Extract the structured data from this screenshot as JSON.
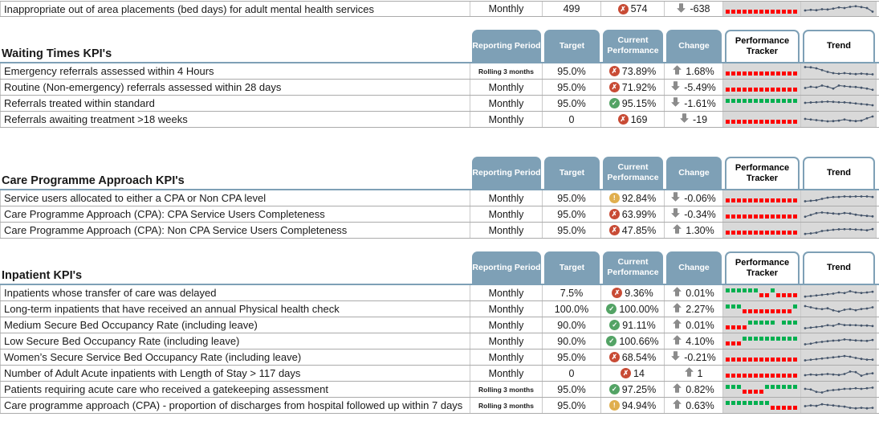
{
  "report": {
    "columns": [
      {
        "label": "Reporting Period",
        "style": "blue"
      },
      {
        "label": "Target",
        "style": "blue"
      },
      {
        "label": "Current Performance",
        "style": "blue"
      },
      {
        "label": "Change",
        "style": "blue"
      },
      {
        "label": "Performance Tracker",
        "style": "white"
      },
      {
        "label": "Trend",
        "style": "white"
      }
    ],
    "top_row": {
      "name": "Inappropriate out of area placements (bed days) for adult mental health services",
      "period": "Monthly",
      "period_small": false,
      "target": "499",
      "status": "fail",
      "current": "574",
      "change_dir": "down",
      "change": "-638",
      "tracker": "RRRRRRRRRRRRR",
      "trend": [
        4,
        4.5,
        4.2,
        5,
        4.8,
        5.5,
        6.5,
        6,
        7,
        7.5,
        6.8,
        6,
        3
      ]
    },
    "sections": [
      {
        "title": "Waiting Times KPI's",
        "rows": [
          {
            "name": "Emergency referrals assessed within 4 Hours",
            "period": "Rolling 3 months",
            "period_small": true,
            "target": "95.0%",
            "status": "fail",
            "current": "73.89%",
            "change_dir": "up",
            "change": "1.68%",
            "tracker": "RRRRRRRRRRRRR",
            "trend": [
              9,
              8.8,
              8,
              6.5,
              5,
              4,
              3.5,
              4,
              3.5,
              3.2,
              3.6,
              3.2,
              3
            ]
          },
          {
            "name": "Routine (Non-emergency) referrals assessed within 28 days",
            "period": "Monthly",
            "period_small": false,
            "target": "95.0%",
            "status": "fail",
            "current": "71.92%",
            "change_dir": "down",
            "change": "-5.49%",
            "tracker": "RRRRRRRRRRRRR",
            "trend": [
              5,
              6,
              5.5,
              7,
              6,
              4.5,
              7,
              6.5,
              6,
              5.8,
              5.2,
              4.5,
              3.5
            ]
          },
          {
            "name": "Referrals treated within standard",
            "period": "Monthly",
            "period_small": false,
            "target": "95.0%",
            "status": "pass",
            "current": "95.15%",
            "change_dir": "down",
            "change": "-1.61%",
            "tracker": "GGGGGGGGGGGGG",
            "trend": [
              6,
              6.3,
              6.5,
              6.8,
              7,
              6.8,
              6.5,
              6.4,
              6,
              5.5,
              5,
              4.6,
              4
            ]
          },
          {
            "name": "Referrals awaiting treatment >18 weeks",
            "period": "Monthly",
            "period_small": false,
            "target": "0",
            "status": "fail",
            "current": "169",
            "change_dir": "down",
            "change": "-19",
            "tracker": "RRRRRRRRRRRRR",
            "trend": [
              6,
              5.5,
              5,
              4.5,
              4,
              4.2,
              4.6,
              5.5,
              4.6,
              4.2,
              4.6,
              6.5,
              8
            ]
          }
        ]
      },
      {
        "title": "Care Programme Approach KPI's",
        "rows": [
          {
            "name": "Service users allocated to either a CPA or Non CPA level",
            "period": "Monthly",
            "period_small": false,
            "target": "95.0%",
            "status": "warn",
            "current": "92.84%",
            "change_dir": "down",
            "change": "-0.06%",
            "tracker": "RRRRRRRRRRRRR",
            "trend": [
              3,
              3.4,
              3.8,
              5,
              6,
              6.5,
              6.6,
              7,
              6.8,
              7,
              7,
              7,
              6.6
            ]
          },
          {
            "name": "Care Programme Approach (CPA): CPA Service Users Completeness",
            "period": "Monthly",
            "period_small": false,
            "target": "95.0%",
            "status": "fail",
            "current": "63.99%",
            "change_dir": "down",
            "change": "-0.34%",
            "tracker": "RRRRRRRRRRRRR",
            "trend": [
              3.5,
              5,
              6.5,
              7,
              6.6,
              6.2,
              5.8,
              6.6,
              6.2,
              5.2,
              4.6,
              4.2,
              3.8
            ]
          },
          {
            "name": "Care Programme Approach (CPA): Non CPA Service Users Completeness",
            "period": "Monthly",
            "period_small": false,
            "target": "95.0%",
            "status": "fail",
            "current": "47.85%",
            "change_dir": "up",
            "change": "1.30%",
            "tracker": "RRRRRRRRRRRRR",
            "trend": [
              2.6,
              3,
              3.6,
              5,
              5.5,
              6,
              6.4,
              6.5,
              6.5,
              6.2,
              6,
              5.6,
              6.6
            ]
          }
        ]
      },
      {
        "title": "Inpatient KPI's",
        "rows": [
          {
            "name": "Inpatients whose transfer of care was delayed",
            "period": "Monthly",
            "period_small": false,
            "target": "7.5%",
            "status": "fail",
            "current": "9.36%",
            "change_dir": "up",
            "change": "0.01%",
            "tracker": "GGGGGGRRGRRRR",
            "trend": [
              2.6,
              3,
              3.5,
              4,
              4.5,
              5,
              6,
              5.5,
              7,
              6,
              5.6,
              6,
              6.6
            ]
          },
          {
            "name": "Long-term inpatients that have received an annual Physical health check",
            "period": "Monthly",
            "period_small": false,
            "target": "100.0%",
            "status": "pass",
            "current": "100.00%",
            "change_dir": "up",
            "change": "2.27%",
            "tracker": "GGGRRRRRRRRRG",
            "trend": [
              8,
              7,
              6,
              5.5,
              6.2,
              4.5,
              3.5,
              5,
              5.6,
              4.6,
              5.6,
              6,
              7
            ]
          },
          {
            "name": "Medium Secure Bed Occupancy Rate (including leave)",
            "period": "Monthly",
            "period_small": false,
            "target": "90.0%",
            "status": "pass",
            "current": "91.11%",
            "change_dir": "up",
            "change": "0.01%",
            "tracker": "RRRRGGGGGXGGG",
            "trend": [
              3,
              3.5,
              4,
              4.5,
              5.5,
              5,
              6.5,
              5.6,
              5.6,
              5.5,
              5.2,
              5.2,
              4.8
            ]
          },
          {
            "name": "Low Secure Bed Occupancy Rate (including leave)",
            "period": "Monthly",
            "period_small": false,
            "target": "90.0%",
            "status": "pass",
            "current": "100.66%",
            "change_dir": "up",
            "change": "4.10%",
            "tracker": "RRRGGGGGGGGGG",
            "trend": [
              3,
              3.5,
              4.5,
              5,
              5.6,
              6,
              6.2,
              7,
              6.6,
              6.2,
              6,
              5.8,
              6.6
            ]
          },
          {
            "name": "Women’s Secure Service Bed Occupancy Rate (including leave)",
            "period": "Monthly",
            "period_small": false,
            "target": "95.0%",
            "status": "fail",
            "current": "68.54%",
            "change_dir": "down",
            "change": "-0.21%",
            "tracker": "RRRRRRRRRRRRR",
            "trend": [
              3,
              3.5,
              4,
              4.5,
              5,
              5.5,
              6,
              6.6,
              6,
              5,
              4.2,
              3.6,
              3.6
            ]
          },
          {
            "name": "Number of Adult Acute inpatients with Length of Stay > 117 days",
            "period": "Monthly",
            "period_small": false,
            "target": "0",
            "status": "fail",
            "current": "14",
            "change_dir": "up",
            "change": "1",
            "tracker": "RRRRRRRRRRRRR",
            "trend": [
              4,
              4.6,
              4.2,
              4.6,
              5,
              4.6,
              4.2,
              5,
              7,
              6.6,
              3.6,
              5,
              5.6
            ]
          },
          {
            "name": "Patients requiring acute care who received a gatekeeping assessment",
            "period": "Rolling 3 months",
            "period_small": true,
            "target": "95.0%",
            "status": "pass",
            "current": "97.25%",
            "change_dir": "up",
            "change": "0.82%",
            "tracker": "GGGRRRRGGGGGG",
            "trend": [
              6,
              5.5,
              3.5,
              3,
              4.5,
              5,
              5.4,
              6,
              6,
              6.5,
              6,
              6.5,
              7
            ]
          },
          {
            "name": "Care programme approach (CPA) - proportion of discharges from hospital followed up within 7 days",
            "period": "Rolling 3 months",
            "period_small": true,
            "target": "95.0%",
            "status": "warn",
            "current": "94.94%",
            "change_dir": "up",
            "change": "0.63%",
            "tracker": "GGGGGGGGRRRRR",
            "trend": [
              5,
              5.6,
              5.2,
              6.6,
              6,
              5.6,
              5,
              4.6,
              3.6,
              3.2,
              3.6,
              3.2,
              3.6
            ]
          }
        ]
      }
    ]
  },
  "icons": {
    "fail_glyph": "✗",
    "pass_glyph": "✓",
    "warn_glyph": "!"
  },
  "colors": {
    "tab_blue": "#7EA0B6",
    "tracker_red": "#FF0000",
    "tracker_green": "#00B050",
    "status_fail": "#C84B35",
    "status_pass": "#53A365",
    "status_warn": "#E0AF4E",
    "arrow_gray": "#8C8C8C",
    "sparkline": "#44546A",
    "cell_gray": "#D9D9D9"
  }
}
